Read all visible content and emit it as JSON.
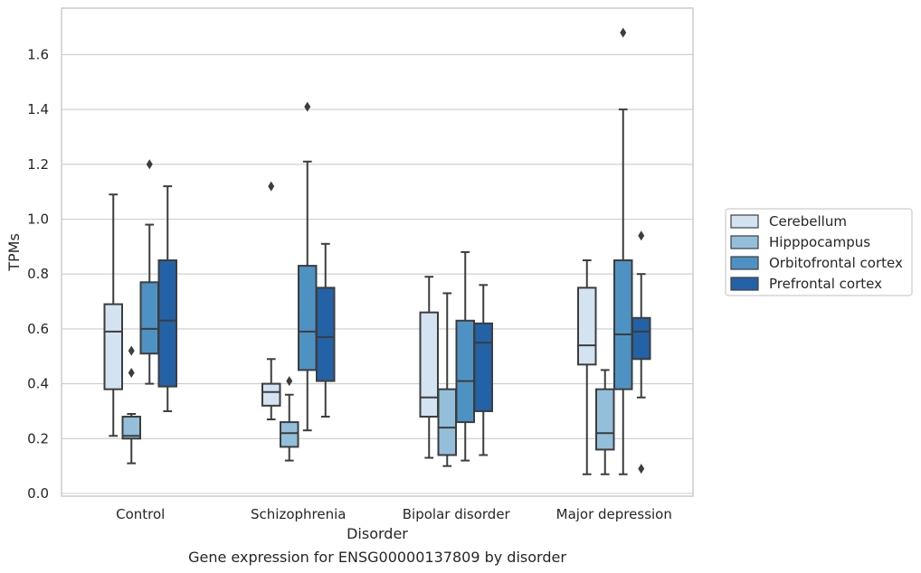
{
  "chart_data": {
    "type": "boxplot",
    "caption": "Gene expression for ENSG00000137809 by disorder",
    "xlabel": "Disorder",
    "ylabel": "TPMs",
    "ylim": [
      0,
      1.76
    ],
    "yticks": [
      0.0,
      0.2,
      0.4,
      0.6,
      0.8,
      1.0,
      1.2,
      1.4,
      1.6
    ],
    "ytick_labels": [
      "0.0",
      "0.2",
      "0.4",
      "0.6",
      "0.8",
      "1.0",
      "1.2",
      "1.4",
      "1.6"
    ],
    "grid": "horizontal",
    "legend_position": "right",
    "categories": [
      "Control",
      "Schizophrenia",
      "Bipolar disorder",
      "Major depression"
    ],
    "series": [
      {
        "name": "Cerebellum",
        "color": "#d3e3f2",
        "boxes": [
          {
            "whisker_low": 0.21,
            "q1": 0.38,
            "median": 0.59,
            "q3": 0.69,
            "whisker_high": 1.09,
            "outliers": []
          },
          {
            "whisker_low": 0.27,
            "q1": 0.32,
            "median": 0.37,
            "q3": 0.4,
            "whisker_high": 0.49,
            "outliers": [
              1.12
            ]
          },
          {
            "whisker_low": 0.13,
            "q1": 0.28,
            "median": 0.35,
            "q3": 0.66,
            "whisker_high": 0.79,
            "outliers": []
          },
          {
            "whisker_low": 0.07,
            "q1": 0.47,
            "median": 0.54,
            "q3": 0.75,
            "whisker_high": 0.85,
            "outliers": []
          }
        ]
      },
      {
        "name": "Hipppocampus",
        "color": "#93bfdb",
        "boxes": [
          {
            "whisker_low": 0.11,
            "q1": 0.2,
            "median": 0.21,
            "q3": 0.28,
            "whisker_high": 0.29,
            "outliers": [
              0.44,
              0.52
            ]
          },
          {
            "whisker_low": 0.12,
            "q1": 0.17,
            "median": 0.22,
            "q3": 0.26,
            "whisker_high": 0.36,
            "outliers": [
              0.41
            ]
          },
          {
            "whisker_low": 0.1,
            "q1": 0.14,
            "median": 0.24,
            "q3": 0.38,
            "whisker_high": 0.73,
            "outliers": []
          },
          {
            "whisker_low": 0.07,
            "q1": 0.16,
            "median": 0.22,
            "q3": 0.38,
            "whisker_high": 0.45,
            "outliers": []
          }
        ]
      },
      {
        "name": "Orbitofrontal cortex",
        "color": "#4e92c3",
        "boxes": [
          {
            "whisker_low": 0.4,
            "q1": 0.51,
            "median": 0.6,
            "q3": 0.77,
            "whisker_high": 0.98,
            "outliers": [
              1.2
            ]
          },
          {
            "whisker_low": 0.23,
            "q1": 0.45,
            "median": 0.59,
            "q3": 0.83,
            "whisker_high": 1.21,
            "outliers": [
              1.41
            ]
          },
          {
            "whisker_low": 0.12,
            "q1": 0.26,
            "median": 0.41,
            "q3": 0.63,
            "whisker_high": 0.88,
            "outliers": []
          },
          {
            "whisker_low": 0.07,
            "q1": 0.38,
            "median": 0.58,
            "q3": 0.85,
            "whisker_high": 1.4,
            "outliers": [
              1.68
            ]
          }
        ]
      },
      {
        "name": "Prefrontal cortex",
        "color": "#2362a6",
        "boxes": [
          {
            "whisker_low": 0.3,
            "q1": 0.39,
            "median": 0.63,
            "q3": 0.85,
            "whisker_high": 1.12,
            "outliers": []
          },
          {
            "whisker_low": 0.28,
            "q1": 0.41,
            "median": 0.57,
            "q3": 0.75,
            "whisker_high": 0.91,
            "outliers": []
          },
          {
            "whisker_low": 0.14,
            "q1": 0.3,
            "median": 0.55,
            "q3": 0.62,
            "whisker_high": 0.76,
            "outliers": []
          },
          {
            "whisker_low": 0.35,
            "q1": 0.49,
            "median": 0.59,
            "q3": 0.64,
            "whisker_high": 0.8,
            "outliers": [
              0.09,
              0.94
            ]
          }
        ]
      }
    ]
  }
}
